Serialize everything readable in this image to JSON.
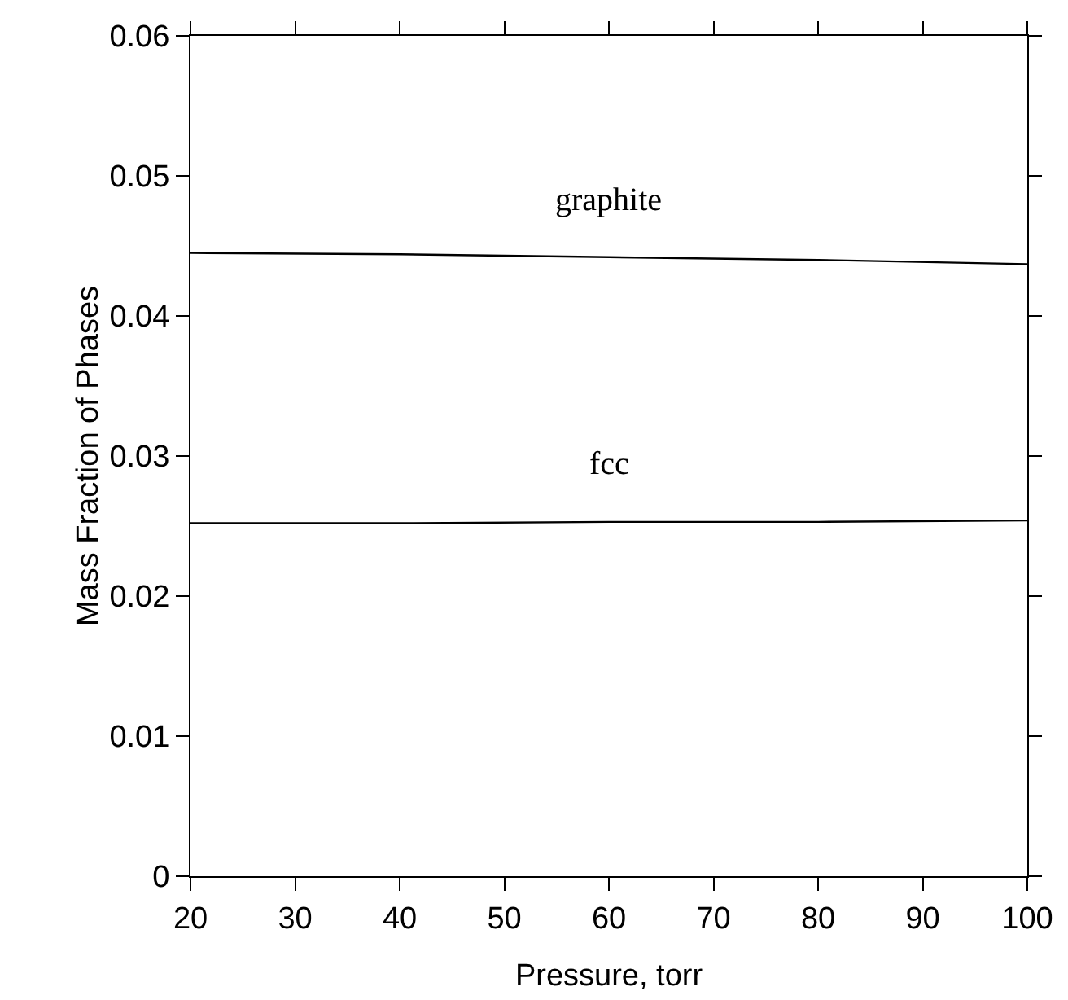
{
  "chart_data": {
    "type": "line",
    "xlabel": "Pressure, torr",
    "ylabel": "Mass Fraction of Phases",
    "x": [
      20,
      40,
      60,
      80,
      100
    ],
    "series": [
      {
        "name": "graphite",
        "color": "#000000",
        "values": [
          0.0445,
          0.0444,
          0.0442,
          0.044,
          0.0437
        ]
      },
      {
        "name": "fcc",
        "color": "#000000",
        "values": [
          0.0252,
          0.0252,
          0.0253,
          0.0253,
          0.0254
        ]
      }
    ],
    "xlim": [
      20,
      100
    ],
    "xticks": [
      20,
      30,
      40,
      50,
      60,
      70,
      80,
      90,
      100
    ],
    "ylim": [
      0,
      0.06
    ],
    "yticks": [
      {
        "value": 0,
        "label": "0"
      },
      {
        "value": 0.01,
        "label": "0.01"
      },
      {
        "value": 0.02,
        "label": "0.02"
      },
      {
        "value": 0.03,
        "label": "0.03"
      },
      {
        "value": 0.04,
        "label": "0.04"
      },
      {
        "value": 0.05,
        "label": "0.05"
      },
      {
        "value": 0.06,
        "label": "0.06"
      }
    ],
    "grid": false,
    "legend": false,
    "marker": "none",
    "line_style": "solid"
  }
}
